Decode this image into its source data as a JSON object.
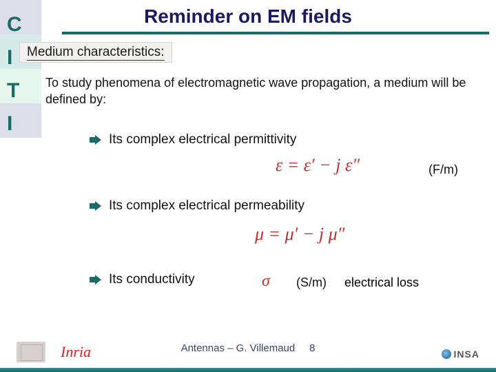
{
  "title": "Reminder on EM fields",
  "sidebar": {
    "acronym": "C I T I"
  },
  "subtitle": "Medium characteristics:",
  "intro": "To study phenomena of electromagnetic wave propagation, a medium will be defined by:",
  "bullets": {
    "b1": "Its complex electrical permittivity",
    "b2": "Its complex electrical permeability",
    "b3": "Its conductivity"
  },
  "formulas": {
    "permittivity": "ε = ε′ − j ε″",
    "permeability": "μ = μ′ − j μ″",
    "conductivity": "σ"
  },
  "units": {
    "permittivity": "(F/m)",
    "conductivity": "(S/m)"
  },
  "loss_label": "electrical loss",
  "footer": {
    "center_text": "Antennas – G. Villemaud",
    "page_number": "8",
    "inria": "Inria",
    "insa": "INSA"
  },
  "colors": {
    "title": "#1a1a5c",
    "accent": "#1a6a6a",
    "formula": "#c03030",
    "inria": "#e02020",
    "footer_text": "#374668"
  }
}
